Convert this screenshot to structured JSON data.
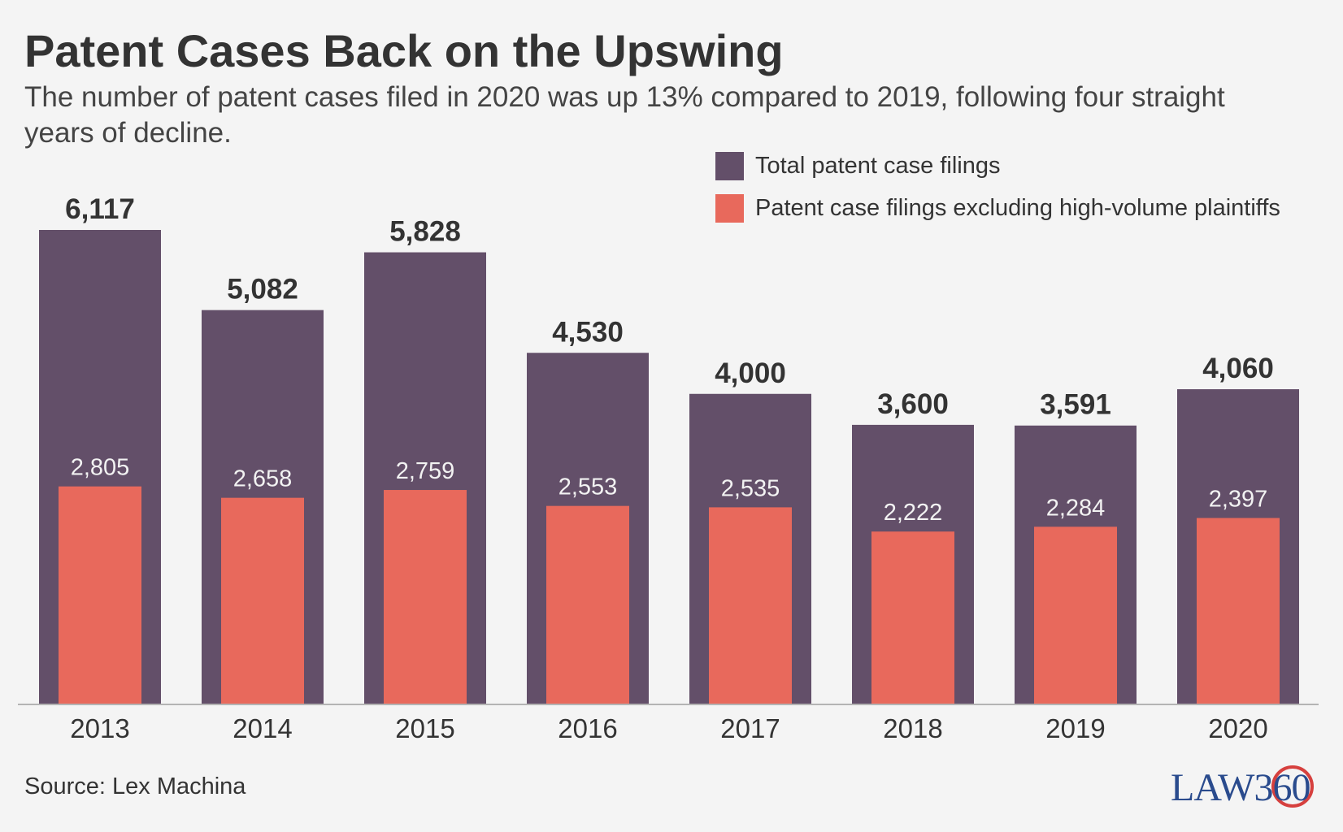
{
  "title": "Patent Cases Back on the Upswing",
  "subtitle": "The number of patent cases filed in 2020 was up 13% compared to 2019, following four straight years of decline.",
  "source": "Source: Lex Machina",
  "logo_text": "LAW360",
  "colors": {
    "total": "#634f69",
    "excluding": "#e8695c",
    "background": "#f4f4f4"
  },
  "chart_data": {
    "type": "bar",
    "title": "Patent Cases Back on the Upswing",
    "subtitle": "The number of patent cases filed in 2020 was up 13% compared to 2019, following four straight years of decline.",
    "categories": [
      "2013",
      "2014",
      "2015",
      "2016",
      "2017",
      "2018",
      "2019",
      "2020"
    ],
    "series": [
      {
        "name": "Total patent case filings",
        "values": [
          6117,
          5082,
          5828,
          4530,
          4000,
          3600,
          3591,
          4060
        ],
        "labels": [
          "6,117",
          "5,082",
          "5,828",
          "4,530",
          "4,000",
          "3,600",
          "3,591",
          "4,060"
        ]
      },
      {
        "name": "Patent case filings excluding high-volume plaintiffs",
        "values": [
          2805,
          2658,
          2759,
          2553,
          2535,
          2222,
          2284,
          2397
        ],
        "labels": [
          "2,805",
          "2,658",
          "2,759",
          "2,553",
          "2,535",
          "2,222",
          "2,284",
          "2,397"
        ]
      }
    ],
    "xlabel": "",
    "ylabel": "",
    "ylim": [
      0,
      6117
    ],
    "grid": false,
    "legend_position": "top-right",
    "layout": "overlapping bars (excluding series drawn inside total series)"
  }
}
